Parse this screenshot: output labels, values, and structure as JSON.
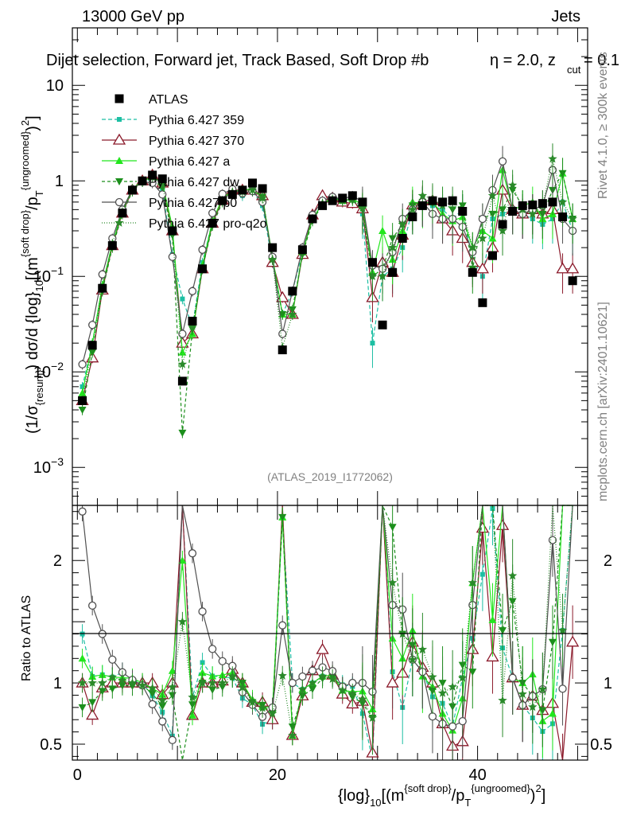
{
  "header": {
    "left": "13000 GeV pp",
    "right": "Jets",
    "subtitle": "Dijet selection, Forward jet, Track Based, Soft Drop #b",
    "eta_part": "η = 2.0, z",
    "zcut_sub": "cut",
    "zcut_tail": " = 0.1"
  },
  "side_labels": {
    "rivet": "Rivet 4.1.0, ≥ 300k events",
    "mcplots": "mcplots.cern.ch [arXiv:2401.10621]"
  },
  "watermark": "(ATLAS_2019_I1772062)",
  "axis_labels": {
    "y_main": "(1/σ{resum}) dσ/d {log}10[(m^{soft drop}/pT^{ungroomed})²]",
    "y_main_1": "(1/σ",
    "y_main_sub1": "{resum}",
    "y_main_2": ") dσ/d {log}",
    "y_main_sub2": "10",
    "y_main_3": "[(m",
    "y_main_sup1": "{soft drop}",
    "y_main_4": "/p",
    "y_main_sub3": "T",
    "y_main_sup2": "{ungroomed}",
    "y_main_5": ")",
    "y_main_sup3": "2",
    "y_main_6": "]",
    "y_ratio": "Ratio to ATLAS",
    "x_1": "{log}",
    "x_sub1": "10",
    "x_2": "[(m",
    "x_sup1": "{soft drop}",
    "x_3": "/p",
    "x_sub2": "T",
    "x_sup2": "{ungroomed}",
    "x_4": ")",
    "x_sup3": "2",
    "x_5": "]"
  },
  "ticks": {
    "y_main": [
      {
        "label": "10^-3",
        "base": "10",
        "exp": "−3",
        "value": 0.001
      },
      {
        "label": "10^-2",
        "base": "10",
        "exp": "−2",
        "value": 0.01
      },
      {
        "label": "10^-1",
        "base": "10",
        "exp": "−1",
        "value": 0.1
      },
      {
        "label": "1",
        "base": "1",
        "exp": "",
        "value": 1
      },
      {
        "label": "10",
        "base": "10",
        "exp": "",
        "value": 10
      }
    ],
    "y_ratio": [
      {
        "label": "0.5",
        "value": 0.5
      },
      {
        "label": "1",
        "value": 1
      },
      {
        "label": "2",
        "value": 2
      }
    ],
    "x": [
      {
        "label": "0",
        "value": 0
      },
      {
        "label": "20",
        "value": 20
      },
      {
        "label": "40",
        "value": 40
      }
    ]
  },
  "colors": {
    "atlas": "#000000",
    "p359": "#1dbfa3",
    "p370": "#8b1a2b",
    "pa": "#22e61d",
    "pdw": "#1c8f1c",
    "pd0": "#505050",
    "pprog2o": "#2a8a2a"
  },
  "chart_data": {
    "type": "scatter",
    "title": "Dijet selection, Forward jet, Track Based, Soft Drop #b, η = 2.0, z_cut = 0.1",
    "xlabel": "{log}10[(m^{soft drop}/pT^{ungroomed})²]",
    "ylabel": "(1/σ{resum}) dσ/d {log}10[(m^{soft drop}/pT^{ungroomed})²]",
    "xlim": [
      -0.5,
      51
    ],
    "ylim": [
      0.0004,
      40
    ],
    "yscale": "log",
    "ratio_ylim": [
      0.37,
      2.45
    ],
    "x": [
      0.5,
      1.5,
      2.5,
      3.5,
      4.5,
      5.5,
      6.5,
      7.5,
      8.5,
      9.5,
      10.5,
      11.5,
      12.5,
      13.5,
      14.5,
      15.5,
      16.5,
      17.5,
      18.5,
      19.5,
      20.5,
      21.5,
      22.5,
      23.5,
      24.5,
      25.5,
      26.5,
      27.5,
      28.5,
      29.5,
      30.5,
      31.5,
      32.5,
      33.5,
      34.5,
      35.5,
      36.5,
      37.5,
      38.5,
      39.5,
      40.5,
      41.5,
      42.5,
      43.5,
      44.5,
      45.5,
      46.5,
      47.5,
      48.5,
      49.5
    ],
    "legend": [
      "ATLAS",
      "Pythia 6.427 359",
      "Pythia 6.427 370",
      "Pythia 6.427 a",
      "Pythia 6.427 dw",
      "Pythia 6.427 p0",
      "Pythia 6.427 pro-q2o"
    ],
    "series": [
      {
        "name": "ATLAS",
        "key": "atlas",
        "marker": "square",
        "values": [
          0.005,
          0.019,
          0.075,
          0.21,
          0.46,
          0.8,
          1.0,
          1.15,
          1.05,
          0.3,
          0.008,
          0.034,
          0.12,
          0.36,
          0.62,
          0.72,
          0.8,
          0.95,
          0.83,
          0.2,
          0.017,
          0.07,
          0.19,
          0.4,
          0.55,
          0.62,
          0.66,
          0.7,
          0.6,
          0.14,
          0.031,
          0.11,
          0.25,
          0.42,
          0.55,
          0.62,
          0.6,
          0.62,
          0.48,
          0.11,
          0.053,
          0.165,
          0.35,
          0.48,
          0.55,
          0.56,
          0.58,
          0.6,
          0.42,
          0.09
        ]
      },
      {
        "name": "Pythia 6.427 359",
        "key": "p359",
        "marker": "small-square",
        "dash": "5,3",
        "values": [
          0.007,
          0.02,
          0.08,
          0.22,
          0.5,
          0.82,
          1.0,
          1.03,
          0.8,
          0.17,
          0.058,
          0.03,
          0.14,
          0.38,
          0.65,
          0.75,
          0.7,
          0.78,
          0.55,
          0.14,
          0.04,
          0.07,
          0.18,
          0.4,
          0.58,
          0.65,
          0.65,
          0.68,
          0.45,
          0.02,
          0.1,
          0.12,
          0.2,
          0.5,
          0.6,
          0.55,
          0.5,
          0.4,
          0.5,
          0.15,
          0.1,
          0.4,
          0.45,
          0.5,
          0.45,
          0.4,
          0.35,
          0.4,
          0.6,
          0.3
        ]
      },
      {
        "name": "Pythia 6.427 370",
        "key": "p370",
        "marker": "open-triangle",
        "values": [
          0.005,
          0.014,
          0.072,
          0.21,
          0.46,
          0.8,
          1.0,
          1.15,
          0.95,
          0.3,
          0.02,
          0.025,
          0.12,
          0.36,
          0.63,
          0.8,
          0.8,
          0.8,
          0.7,
          0.14,
          0.06,
          0.04,
          0.17,
          0.44,
          0.7,
          0.66,
          0.6,
          0.58,
          0.51,
          0.06,
          0.14,
          0.11,
          0.27,
          0.56,
          0.62,
          0.62,
          0.4,
          0.3,
          0.25,
          0.14,
          0.12,
          0.2,
          0.8,
          0.5,
          0.45,
          0.5,
          0.45,
          0.5,
          0.12,
          0.12
        ]
      },
      {
        "name": "Pythia 6.427 a",
        "key": "pa",
        "marker": "triangle",
        "values": [
          0.006,
          0.02,
          0.08,
          0.22,
          0.48,
          0.83,
          1.0,
          1.1,
          0.95,
          0.33,
          0.016,
          0.025,
          0.13,
          0.38,
          0.66,
          0.78,
          0.8,
          0.82,
          0.67,
          0.16,
          0.04,
          0.04,
          0.18,
          0.4,
          0.58,
          0.66,
          0.62,
          0.65,
          0.56,
          0.11,
          0.3,
          0.15,
          0.3,
          0.6,
          0.58,
          0.6,
          0.45,
          0.38,
          0.42,
          0.2,
          0.3,
          0.25,
          1.3,
          0.5,
          0.55,
          0.6,
          0.4,
          0.45,
          1.2,
          0.4
        ]
      },
      {
        "name": "Pythia 6.427 dw",
        "key": "pdw",
        "marker": "down-triangle",
        "dash": "4,3",
        "values": [
          0.004,
          0.016,
          0.07,
          0.2,
          0.45,
          0.78,
          0.98,
          1.05,
          0.85,
          0.27,
          0.0023,
          0.028,
          0.12,
          0.34,
          0.6,
          0.75,
          0.8,
          0.8,
          0.68,
          0.15,
          0.04,
          0.045,
          0.17,
          0.38,
          0.57,
          0.65,
          0.64,
          0.62,
          0.5,
          0.1,
          0.12,
          0.25,
          0.35,
          0.55,
          0.6,
          0.58,
          0.6,
          0.5,
          0.55,
          0.12,
          0.4,
          0.45,
          0.5,
          0.8,
          0.55,
          0.5,
          0.45,
          0.8,
          1.2,
          0.4
        ]
      },
      {
        "name": "Pythia 6.427 p0",
        "key": "pd0",
        "marker": "open-circle",
        "values": [
          0.012,
          0.031,
          0.105,
          0.25,
          0.5,
          0.82,
          0.98,
          0.95,
          0.72,
          0.16,
          0.025,
          0.07,
          0.19,
          0.46,
          0.73,
          0.82,
          0.74,
          0.78,
          0.6,
          0.16,
          0.025,
          0.07,
          0.2,
          0.44,
          0.62,
          0.68,
          0.64,
          0.7,
          0.6,
          0.13,
          0.12,
          0.18,
          0.4,
          0.5,
          0.6,
          0.45,
          0.4,
          0.4,
          0.33,
          0.18,
          0.4,
          0.8,
          1.6,
          0.5,
          0.45,
          0.5,
          0.55,
          1.3,
          0.4,
          0.3
        ]
      },
      {
        "name": "Pythia 6.427 pro-q2o",
        "key": "pprog2o",
        "marker": "star",
        "dash": "1,2",
        "values": [
          0.005,
          0.019,
          0.075,
          0.22,
          0.47,
          0.8,
          0.98,
          1.1,
          0.9,
          0.29,
          0.012,
          0.03,
          0.12,
          0.36,
          0.62,
          0.76,
          0.77,
          0.8,
          0.66,
          0.15,
          0.018,
          0.04,
          0.18,
          0.4,
          0.58,
          0.64,
          0.62,
          0.64,
          0.52,
          0.1,
          0.1,
          0.2,
          0.35,
          0.5,
          0.7,
          0.65,
          0.55,
          0.6,
          0.5,
          0.2,
          0.25,
          0.7,
          0.3,
          0.9,
          0.5,
          0.45,
          0.55,
          1.7,
          0.6,
          0.4
        ]
      }
    ]
  }
}
